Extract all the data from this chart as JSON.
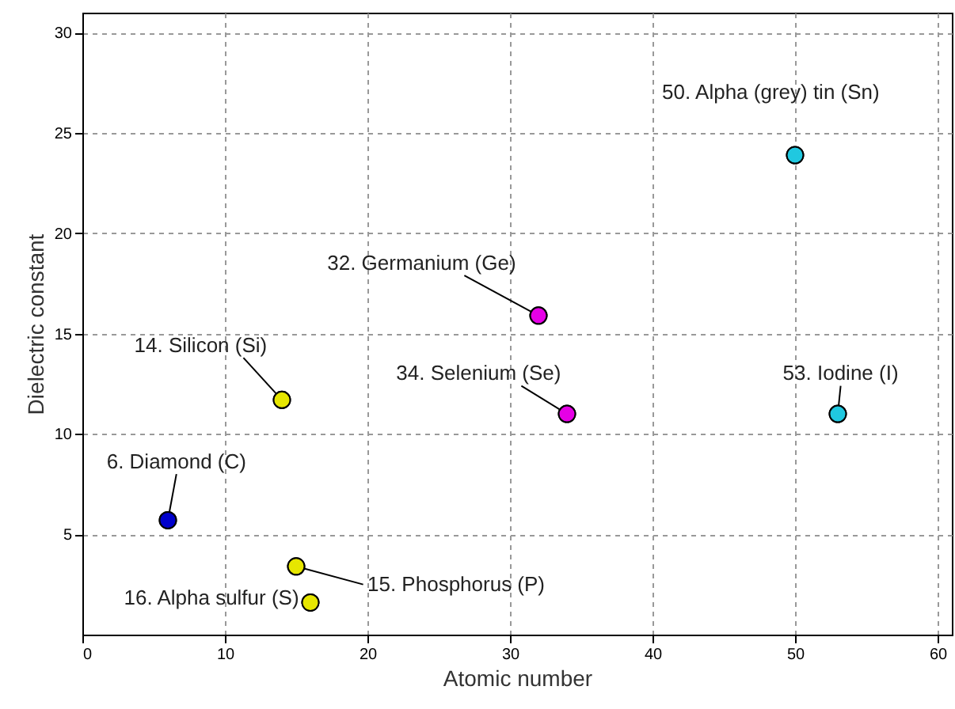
{
  "chart_data": {
    "type": "scatter",
    "xlabel": "Atomic number",
    "ylabel": "Dielectric constant",
    "x": [
      6,
      14,
      15,
      16,
      32,
      34,
      50,
      53
    ],
    "values": [
      5.7,
      11.7,
      3.4,
      1.6,
      15.9,
      11,
      23.9,
      11
    ],
    "colors": [
      "#0000cc",
      "#e6e600",
      "#e6e600",
      "#e6e600",
      "#e600e6",
      "#e600e6",
      "#20c8e0",
      "#20c8e0"
    ],
    "marker": "circle",
    "grid": true,
    "xlim": [
      0,
      61
    ],
    "ylim": [
      0,
      31
    ],
    "xticks": [
      0,
      10,
      20,
      30,
      40,
      50,
      60
    ],
    "yticks": [
      5,
      10,
      15,
      20,
      25,
      30
    ],
    "annotations": [
      {
        "text": "6. Diamond (C)",
        "x": 6,
        "y": 5.7
      },
      {
        "text": "14. Silicon (Si)",
        "x": 14,
        "y": 11.7
      },
      {
        "text": "15. Phosphorus (P)",
        "x": 15,
        "y": 3.4
      },
      {
        "text": "16. Alpha sulfur (S)",
        "x": 16,
        "y": 1.6
      },
      {
        "text": "32. Germanium (Ge)",
        "x": 32,
        "y": 15.9
      },
      {
        "text": "34. Selenium (Se)",
        "x": 34,
        "y": 11
      },
      {
        "text": "50. Alpha (grey) tin (Sn)",
        "x": 50,
        "y": 23.9
      },
      {
        "text": "53. Iodine (I)",
        "x": 53,
        "y": 11
      }
    ]
  }
}
